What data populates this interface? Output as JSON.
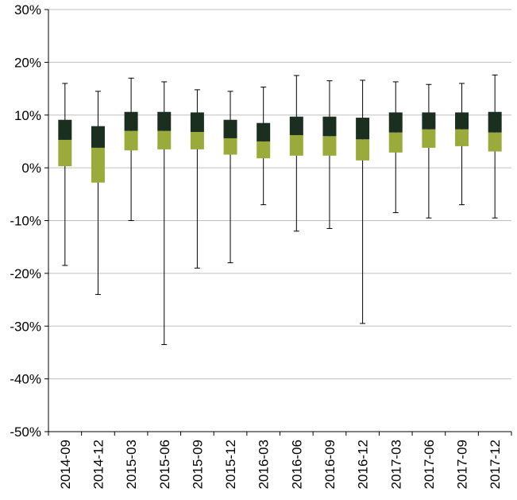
{
  "chart_data": {
    "type": "box",
    "title": "",
    "xlabel": "",
    "ylabel": "",
    "ylim": [
      -50,
      30
    ],
    "y_unit": "%",
    "yticks": [
      30,
      20,
      10,
      0,
      -10,
      -20,
      -30,
      -40,
      -50
    ],
    "ytick_labels": [
      "30%",
      "20%",
      "10%",
      "0%",
      "-10%",
      "-20%",
      "-30%",
      "-40%",
      "-50%"
    ],
    "grid": true,
    "legend": "none",
    "categories": [
      "2014-09",
      "2014-12",
      "2015-03",
      "2015-06",
      "2015-09",
      "2015-12",
      "2016-03",
      "2016-06",
      "2016-09",
      "2016-12",
      "2017-03",
      "2017-06",
      "2017-09",
      "2017-12"
    ],
    "min": [
      -18.5,
      -24.0,
      -10.0,
      -33.5,
      -19.0,
      -18.0,
      -7.0,
      -12.0,
      -11.5,
      -29.5,
      -8.5,
      -9.5,
      -7.0,
      -9.5
    ],
    "q1": [
      0.3,
      -2.8,
      3.3,
      3.5,
      3.5,
      2.5,
      1.8,
      2.3,
      2.3,
      1.4,
      2.9,
      3.8,
      4.1,
      3.1
    ],
    "median": [
      5.3,
      3.8,
      7.0,
      7.0,
      6.8,
      5.6,
      5.0,
      6.2,
      6.0,
      5.4,
      6.7,
      7.3,
      7.3,
      6.7
    ],
    "q3": [
      9.1,
      7.9,
      10.6,
      10.6,
      10.5,
      9.1,
      8.5,
      9.7,
      9.7,
      9.5,
      10.5,
      10.5,
      10.5,
      10.6
    ],
    "max": [
      16.0,
      14.5,
      17.0,
      16.3,
      14.8,
      14.5,
      15.3,
      17.5,
      16.5,
      16.6,
      16.3,
      15.8,
      16.0,
      17.6
    ],
    "colors": {
      "lower_box": "#9aab3c",
      "upper_box": "#1b2f20",
      "whisker": "#000000",
      "grid": "#bfbfbf",
      "axis": "#000000"
    }
  }
}
